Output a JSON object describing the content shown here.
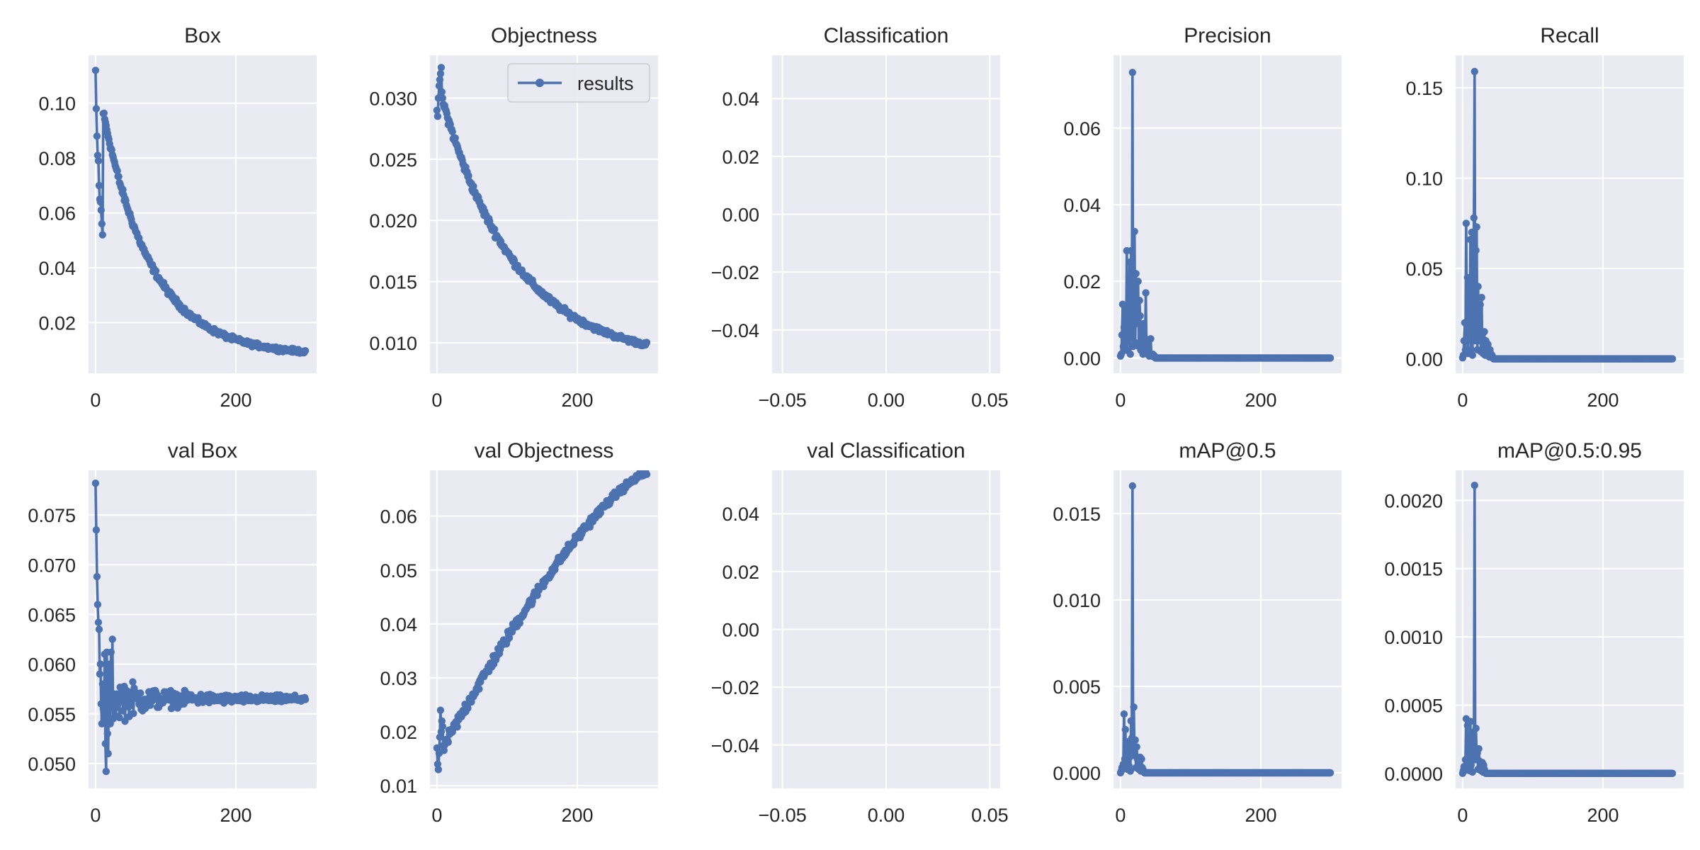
{
  "figure": {
    "background": "#ffffff",
    "plot_background": "#eaeaf2",
    "grid_color": "#ffffff",
    "series_color": "#4c72b0",
    "tick_text_color": "#262626"
  },
  "legend": {
    "label": "results",
    "placement": "top-right",
    "panel": "objectness"
  },
  "chart_data": [
    {
      "id": "box",
      "type": "line",
      "title": "Box",
      "xlim": [
        -10,
        315
      ],
      "ylim": [
        0.0015,
        0.1175
      ],
      "xticks": [
        0,
        200
      ],
      "xtick_labels": [
        "0",
        "200"
      ],
      "yticks": [
        0.02,
        0.04,
        0.06,
        0.08,
        0.1
      ],
      "ytick_labels": [
        "0.02",
        "0.04",
        "0.06",
        "0.08",
        "0.10"
      ],
      "generator": {
        "kind": "decay",
        "start": 0.112,
        "end": 0.008,
        "rate": 0.0145,
        "noise": 0.0022,
        "first": [
          0.112,
          0.098,
          0.088,
          0.081,
          0.079,
          0.07,
          0.065,
          0.064,
          0.061,
          0.056,
          0.052
        ]
      }
    },
    {
      "id": "objectness",
      "type": "line",
      "title": "Objectness",
      "series_name": "results",
      "xlim": [
        -10,
        315
      ],
      "ylim": [
        0.0075,
        0.0335
      ],
      "xticks": [
        0,
        200
      ],
      "xtick_labels": [
        "0",
        "200"
      ],
      "yticks": [
        0.01,
        0.015,
        0.02,
        0.025,
        0.03
      ],
      "ytick_labels": [
        "0.010",
        "0.015",
        "0.020",
        "0.025",
        "0.030"
      ],
      "generator": {
        "kind": "decay",
        "start": 0.0315,
        "end": 0.0085,
        "rate": 0.0095,
        "noise": 0.0006,
        "first": [
          0.029,
          0.0285,
          0.03,
          0.031,
          0.0315,
          0.032,
          0.0325,
          0.0305,
          0.03,
          0.0295
        ]
      }
    },
    {
      "id": "classification",
      "type": "line",
      "title": "Classification",
      "xlim": [
        -0.055,
        0.055
      ],
      "ylim": [
        -0.055,
        0.055
      ],
      "xticks": [
        -0.05,
        0.0,
        0.05
      ],
      "xtick_labels": [
        "−0.05",
        "0.00",
        "0.05"
      ],
      "yticks": [
        -0.04,
        -0.02,
        0.0,
        0.02,
        0.04
      ],
      "ytick_labels": [
        "−0.04",
        "−0.02",
        "0.00",
        "0.02",
        "0.04"
      ],
      "generator": {
        "kind": "empty"
      }
    },
    {
      "id": "precision",
      "type": "line",
      "title": "Precision",
      "xlim": [
        -10,
        315
      ],
      "ylim": [
        -0.004,
        0.079
      ],
      "xticks": [
        0,
        200
      ],
      "xtick_labels": [
        "0",
        "200"
      ],
      "yticks": [
        0.0,
        0.02,
        0.04,
        0.06
      ],
      "ytick_labels": [
        "0.00",
        "0.02",
        "0.04",
        "0.06"
      ],
      "generator": {
        "kind": "spike",
        "values": [
          0.0005,
          0.001,
          0.006,
          0.014,
          0.003,
          0.008,
          0.002,
          0.013,
          0.004,
          0.028,
          0.002,
          0.01,
          0.005,
          0.025,
          0.001,
          0.028,
          0.006,
          0.0745,
          0.003,
          0.018,
          0.033,
          0.004,
          0.022,
          0.012,
          0.009,
          0.02,
          0.003,
          0.015,
          0.011,
          0.002,
          0.004,
          0.008,
          0.001,
          0.009,
          0.003,
          0.005,
          0.017,
          0.002,
          0.001,
          0.004,
          0.003,
          0.0005,
          0.001,
          0.005,
          0.0008,
          0.0005,
          0.001,
          0.0003,
          0.0006,
          0.0002
        ]
      }
    },
    {
      "id": "recall",
      "type": "line",
      "title": "Recall",
      "xlim": [
        -10,
        315
      ],
      "ylim": [
        -0.008,
        0.168
      ],
      "xticks": [
        0,
        200
      ],
      "xtick_labels": [
        "0",
        "200"
      ],
      "yticks": [
        0.0,
        0.05,
        0.1,
        0.15
      ],
      "ytick_labels": [
        "0.00",
        "0.05",
        "0.10",
        "0.15"
      ],
      "generator": {
        "kind": "spike",
        "values": [
          0.0005,
          0.002,
          0.01,
          0.02,
          0.005,
          0.075,
          0.01,
          0.045,
          0.003,
          0.04,
          0.015,
          0.066,
          0.005,
          0.07,
          0.002,
          0.04,
          0.078,
          0.159,
          0.01,
          0.06,
          0.073,
          0.005,
          0.04,
          0.02,
          0.01,
          0.03,
          0.004,
          0.034,
          0.01,
          0.003,
          0.005,
          0.015,
          0.002,
          0.01,
          0.004,
          0.006,
          0.008,
          0.002,
          0.001,
          0.005,
          0.003,
          0.001,
          0.002,
          0.0005
        ]
      }
    },
    {
      "id": "val_box",
      "type": "line",
      "title": "val Box",
      "xlim": [
        -10,
        315
      ],
      "ylim": [
        0.0475,
        0.0795
      ],
      "xticks": [
        0,
        200
      ],
      "xtick_labels": [
        "0",
        "200"
      ],
      "yticks": [
        0.05,
        0.055,
        0.06,
        0.065,
        0.07,
        0.075
      ],
      "ytick_labels": [
        "0.050",
        "0.055",
        "0.060",
        "0.065",
        "0.070",
        "0.075"
      ],
      "generator": {
        "kind": "converge",
        "center": 0.0565,
        "amp": 0.0035,
        "decay": 0.018,
        "first": [
          0.0782,
          0.0735,
          0.0688,
          0.066,
          0.0642,
          0.0635,
          0.059,
          0.06,
          0.056,
          0.054,
          0.058,
          0.0555,
          0.0545,
          0.061,
          0.052,
          0.0492,
          0.0612,
          0.053,
          0.051,
          0.058,
          0.06,
          0.054,
          0.0612,
          0.056,
          0.0625,
          0.0545,
          0.057
        ]
      }
    },
    {
      "id": "val_objectness",
      "type": "line",
      "title": "val Objectness",
      "xlim": [
        -10,
        315
      ],
      "ylim": [
        0.0095,
        0.0685
      ],
      "xticks": [
        0,
        200
      ],
      "xtick_labels": [
        "0",
        "200"
      ],
      "yticks": [
        0.01,
        0.02,
        0.03,
        0.04,
        0.05,
        0.06
      ],
      "ytick_labels": [
        "0.01",
        "0.02",
        "0.03",
        "0.04",
        "0.05",
        "0.06"
      ],
      "generator": {
        "kind": "rise",
        "start": 0.015,
        "end": 0.068,
        "noise": 0.0018,
        "first": [
          0.017,
          0.014,
          0.013,
          0.016,
          0.019,
          0.024,
          0.02,
          0.022,
          0.021
        ]
      }
    },
    {
      "id": "val_classification",
      "type": "line",
      "title": "val Classification",
      "xlim": [
        -0.055,
        0.055
      ],
      "ylim": [
        -0.055,
        0.055
      ],
      "xticks": [
        -0.05,
        0.0,
        0.05
      ],
      "xtick_labels": [
        "−0.05",
        "0.00",
        "0.05"
      ],
      "yticks": [
        -0.04,
        -0.02,
        0.0,
        0.02,
        0.04
      ],
      "ytick_labels": [
        "−0.04",
        "−0.02",
        "0.00",
        "0.02",
        "0.04"
      ],
      "generator": {
        "kind": "empty"
      }
    },
    {
      "id": "map50",
      "type": "line",
      "title": "mAP@0.5",
      "xlim": [
        -10,
        315
      ],
      "ylim": [
        -0.0009,
        0.0175
      ],
      "xticks": [
        0,
        200
      ],
      "xtick_labels": [
        "0",
        "200"
      ],
      "yticks": [
        0.0,
        0.005,
        0.01,
        0.015
      ],
      "ytick_labels": [
        "0.000",
        "0.005",
        "0.010",
        "0.015"
      ],
      "generator": {
        "kind": "spike",
        "values": [
          0.0,
          0.0001,
          0.0003,
          0.0002,
          0.0005,
          0.0034,
          0.0008,
          0.0025,
          0.0003,
          0.0012,
          0.0002,
          0.0018,
          0.0004,
          0.0009,
          0.0001,
          0.003,
          0.002,
          0.0166,
          0.0012,
          0.0038,
          0.001,
          0.0019,
          0.0003,
          0.0015,
          0.0008,
          0.0004,
          0.0002,
          0.0006,
          0.0009,
          0.0001,
          0.0008,
          0.0003,
          0.0002,
          0.0001,
          0.0
        ]
      }
    },
    {
      "id": "map5095",
      "type": "line",
      "title": "mAP@0.5:0.95",
      "xlim": [
        -10,
        315
      ],
      "ylim": [
        -0.00011,
        0.00222
      ],
      "xticks": [
        0,
        200
      ],
      "xtick_labels": [
        "0",
        "200"
      ],
      "yticks": [
        0.0,
        0.0005,
        0.001,
        0.0015,
        0.002
      ],
      "ytick_labels": [
        "0.0000",
        "0.0005",
        "0.0010",
        "0.0015",
        "0.0020"
      ],
      "generator": {
        "kind": "spike",
        "values": [
          0.0,
          2e-05,
          5e-05,
          2e-05,
          0.0001,
          0.0004,
          8e-05,
          0.00035,
          3e-05,
          0.00015,
          2e-05,
          0.00038,
          6e-05,
          0.00012,
          1e-05,
          0.0003,
          0.0002,
          0.00211,
          0.0001,
          0.00033,
          0.00012,
          0.00015,
          3e-05,
          0.00018,
          9e-05,
          4e-05,
          2e-05,
          6e-05,
          8e-05,
          1e-05,
          6e-05,
          3e-05,
          1e-05,
          0.0
        ]
      }
    }
  ]
}
